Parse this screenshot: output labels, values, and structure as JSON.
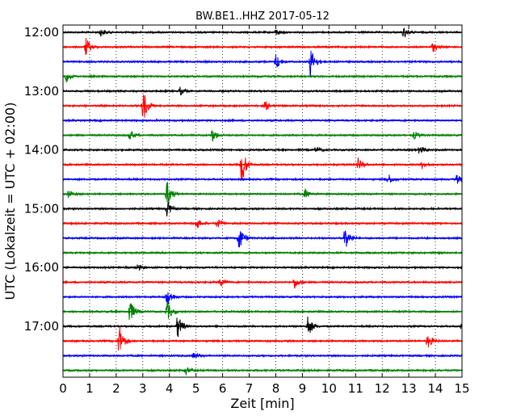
{
  "chart_data": {
    "type": "line",
    "title": "BW.BE1..HHZ 2017-05-12",
    "xlabel": "Zeit  [min]",
    "ylabel": "UTC (Lokalzeit = UTC + 02:00)",
    "xlim": [
      0,
      15
    ],
    "x_ticks": [
      "0",
      "1",
      "2",
      "3",
      "4",
      "5",
      "6",
      "7",
      "8",
      "9",
      "10",
      "11",
      "12",
      "13",
      "14",
      "15"
    ],
    "y_tick_labels": [
      "12:00",
      "13:00",
      "14:00",
      "15:00",
      "16:00",
      "17:00"
    ],
    "grid": "vertical dotted",
    "colors": [
      "#000000",
      "#ff0000",
      "#0000ff",
      "#008000"
    ],
    "series": [
      {
        "start": "12:00",
        "events": [
          [
            1.4,
            5
          ],
          [
            8.0,
            4
          ],
          [
            12.8,
            7
          ]
        ]
      },
      {
        "start": "12:15",
        "events": [
          [
            0.85,
            12
          ],
          [
            13.9,
            6
          ]
        ]
      },
      {
        "start": "12:30",
        "events": [
          [
            8.0,
            10
          ],
          [
            9.3,
            20
          ]
        ]
      },
      {
        "start": "12:45",
        "events": [
          [
            0.1,
            8
          ]
        ]
      },
      {
        "start": "13:00",
        "events": [
          [
            4.4,
            5
          ]
        ]
      },
      {
        "start": "13:15",
        "events": [
          [
            3.0,
            22
          ],
          [
            7.6,
            6
          ]
        ]
      },
      {
        "start": "13:30",
        "events": []
      },
      {
        "start": "13:45",
        "events": [
          [
            2.5,
            7
          ],
          [
            5.6,
            9
          ],
          [
            13.2,
            5
          ]
        ]
      },
      {
        "start": "14:00",
        "events": [
          [
            9.5,
            4
          ],
          [
            13.4,
            6
          ]
        ]
      },
      {
        "start": "14:15",
        "events": [
          [
            6.7,
            28
          ],
          [
            11.1,
            8
          ],
          [
            13.5,
            5
          ]
        ]
      },
      {
        "start": "14:30",
        "events": [
          [
            12.2,
            8
          ],
          [
            14.8,
            6
          ]
        ]
      },
      {
        "start": "14:45",
        "events": [
          [
            0.2,
            6
          ],
          [
            3.9,
            18
          ],
          [
            9.1,
            6
          ]
        ]
      },
      {
        "start": "15:00",
        "events": [
          [
            3.9,
            10
          ]
        ]
      },
      {
        "start": "15:15",
        "events": [
          [
            5.0,
            8
          ],
          [
            5.8,
            6
          ]
        ]
      },
      {
        "start": "15:30",
        "events": [
          [
            6.6,
            18
          ],
          [
            10.6,
            18
          ]
        ]
      },
      {
        "start": "15:45",
        "events": []
      },
      {
        "start": "16:00",
        "events": [
          [
            2.8,
            4
          ]
        ]
      },
      {
        "start": "16:15",
        "events": [
          [
            5.9,
            6
          ],
          [
            8.7,
            8
          ]
        ]
      },
      {
        "start": "16:30",
        "events": [
          [
            3.9,
            14
          ]
        ]
      },
      {
        "start": "16:45",
        "events": [
          [
            2.5,
            16
          ],
          [
            3.9,
            14
          ]
        ]
      },
      {
        "start": "17:00",
        "events": [
          [
            4.3,
            16
          ],
          [
            9.2,
            14
          ],
          [
            15.0,
            10
          ]
        ]
      },
      {
        "start": "17:15",
        "events": [
          [
            2.1,
            22
          ],
          [
            13.7,
            10
          ]
        ]
      },
      {
        "start": "17:30",
        "events": [
          [
            4.9,
            4
          ]
        ]
      },
      {
        "start": "17:45",
        "events": [
          [
            4.6,
            5
          ]
        ]
      }
    ]
  }
}
